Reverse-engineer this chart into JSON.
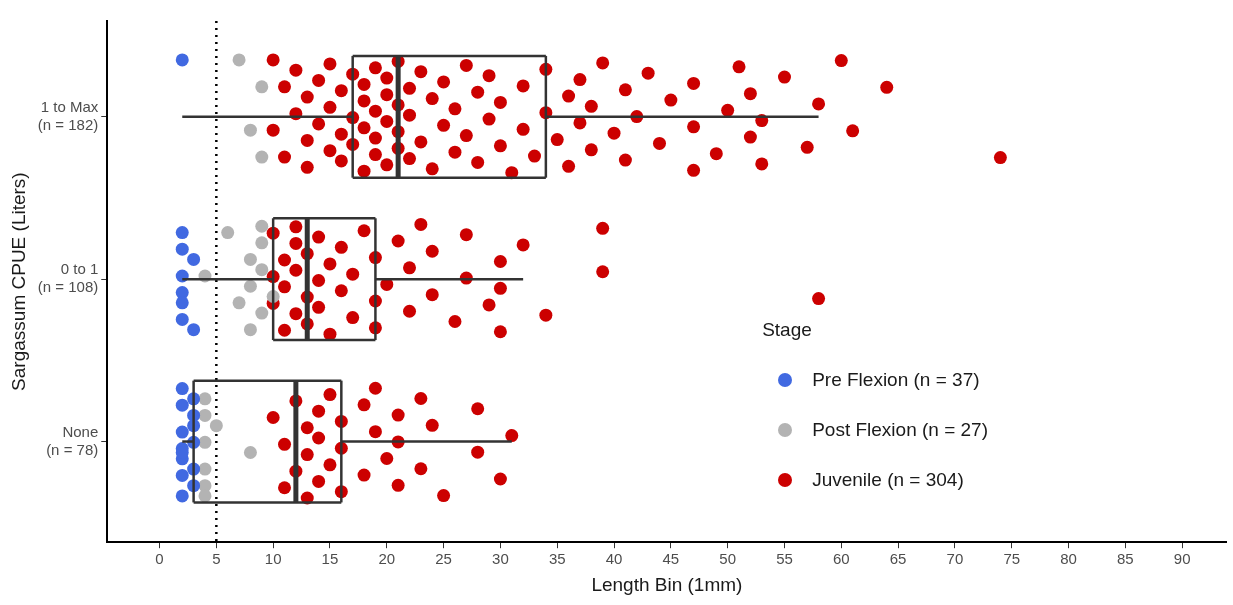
{
  "chart_data": {
    "type": "box",
    "orientation": "horizontal",
    "xlabel": "Length Bin (1mm)",
    "ylabel": "Sargassum CPUE (Liters)",
    "legend_title": "Stage",
    "legend": "bottom right",
    "categories": [
      "1 to Max\n(n = 182)",
      "0 to 1\n(n = 108)",
      "None\n(n = 78)"
    ],
    "xlim": [
      -4.6,
      93.9
    ],
    "xticks": [
      0,
      5,
      10,
      15,
      20,
      25,
      30,
      35,
      40,
      45,
      50,
      55,
      60,
      65,
      70,
      75,
      80,
      85,
      90
    ],
    "boxes": [
      {
        "low": 2,
        "q1": 17,
        "median": 21,
        "q3": 34,
        "high": 58
      },
      {
        "low": 2,
        "q1": 10,
        "median": 13,
        "q3": 19,
        "high": 32
      },
      {
        "low": 2,
        "q1": 3,
        "median": 12,
        "q3": 16,
        "high": 31
      }
    ],
    "ref_lines": [
      {
        "axis": "x",
        "value": 5,
        "line_style": "dotted",
        "color": "#000000"
      }
    ],
    "series": [
      {
        "name": "Pre Flexion (n = 37)",
        "type": "scatter",
        "color": "#4169e1",
        "x": [
          "1 to Max\n(n = 182)",
          "0 to 1\n(n = 108)",
          "0 to 1\n(n = 108)",
          "0 to 1\n(n = 108)",
          "0 to 1\n(n = 108)",
          "0 to 1\n(n = 108)",
          "0 to 1\n(n = 108)",
          "0 to 1\n(n = 108)",
          "0 to 1\n(n = 108)",
          "None\n(n = 78)",
          "None\n(n = 78)",
          "None\n(n = 78)",
          "None\n(n = 78)",
          "None\n(n = 78)",
          "None\n(n = 78)",
          "None\n(n = 78)",
          "None\n(n = 78)",
          "None\n(n = 78)",
          "None\n(n = 78)",
          "None\n(n = 78)",
          "None\n(n = 78)",
          "None\n(n = 78)",
          "None\n(n = 78)"
        ],
        "values": [
          2,
          2,
          2,
          2,
          2,
          2,
          2,
          3,
          3,
          2,
          2,
          2,
          2,
          2,
          2,
          3,
          3,
          3,
          3,
          3,
          3,
          2,
          2
        ]
      },
      {
        "name": "Post Flexion (n = 27)",
        "type": "scatter",
        "color": "#b3b3b3",
        "x": [
          "1 to Max\n(n = 182)",
          "1 to Max\n(n = 182)",
          "1 to Max\n(n = 182)",
          "1 to Max\n(n = 182)",
          "0 to 1\n(n = 108)",
          "0 to 1\n(n = 108)",
          "0 to 1\n(n = 108)",
          "0 to 1\n(n = 108)",
          "0 to 1\n(n = 108)",
          "0 to 1\n(n = 108)",
          "0 to 1\n(n = 108)",
          "0 to 1\n(n = 108)",
          "0 to 1\n(n = 108)",
          "0 to 1\n(n = 108)",
          "0 to 1\n(n = 108)",
          "None\n(n = 78)",
          "None\n(n = 78)",
          "None\n(n = 78)",
          "None\n(n = 78)",
          "None\n(n = 78)",
          "None\n(n = 78)",
          "None\n(n = 78)",
          "None\n(n = 78)"
        ],
        "values": [
          7,
          8,
          9,
          9,
          4,
          6,
          7,
          8,
          8,
          8,
          9,
          9,
          9,
          9,
          10,
          4,
          4,
          4,
          4,
          4,
          5,
          4,
          8
        ]
      },
      {
        "name": "Juvenile (n = 304)",
        "type": "scatter",
        "color": "#cc0000",
        "x": [
          "1 to Max\n(n = 182)",
          "1 to Max\n(n = 182)",
          "1 to Max\n(n = 182)",
          "1 to Max\n(n = 182)",
          "1 to Max\n(n = 182)",
          "1 to Max\n(n = 182)",
          "1 to Max\n(n = 182)",
          "1 to Max\n(n = 182)",
          "1 to Max\n(n = 182)",
          "1 to Max\n(n = 182)",
          "1 to Max\n(n = 182)",
          "1 to Max\n(n = 182)",
          "1 to Max\n(n = 182)",
          "1 to Max\n(n = 182)",
          "1 to Max\n(n = 182)",
          "1 to Max\n(n = 182)",
          "1 to Max\n(n = 182)",
          "1 to Max\n(n = 182)",
          "1 to Max\n(n = 182)",
          "1 to Max\n(n = 182)",
          "1 to Max\n(n = 182)",
          "1 to Max\n(n = 182)",
          "1 to Max\n(n = 182)",
          "1 to Max\n(n = 182)",
          "1 to Max\n(n = 182)",
          "1 to Max\n(n = 182)",
          "1 to Max\n(n = 182)",
          "1 to Max\n(n = 182)",
          "1 to Max\n(n = 182)",
          "1 to Max\n(n = 182)",
          "1 to Max\n(n = 182)",
          "1 to Max\n(n = 182)",
          "1 to Max\n(n = 182)",
          "1 to Max\n(n = 182)",
          "1 to Max\n(n = 182)",
          "1 to Max\n(n = 182)",
          "1 to Max\n(n = 182)",
          "1 to Max\n(n = 182)",
          "1 to Max\n(n = 182)",
          "1 to Max\n(n = 182)",
          "1 to Max\n(n = 182)",
          "1 to Max\n(n = 182)",
          "1 to Max\n(n = 182)",
          "1 to Max\n(n = 182)",
          "1 to Max\n(n = 182)",
          "1 to Max\n(n = 182)",
          "1 to Max\n(n = 182)",
          "1 to Max\n(n = 182)",
          "1 to Max\n(n = 182)",
          "1 to Max\n(n = 182)",
          "1 to Max\n(n = 182)",
          "1 to Max\n(n = 182)",
          "1 to Max\n(n = 182)",
          "1 to Max\n(n = 182)",
          "1 to Max\n(n = 182)",
          "1 to Max\n(n = 182)",
          "1 to Max\n(n = 182)",
          "1 to Max\n(n = 182)",
          "1 to Max\n(n = 182)",
          "1 to Max\n(n = 182)",
          "1 to Max\n(n = 182)",
          "1 to Max\n(n = 182)",
          "1 to Max\n(n = 182)",
          "1 to Max\n(n = 182)",
          "1 to Max\n(n = 182)",
          "1 to Max\n(n = 182)",
          "1 to Max\n(n = 182)",
          "1 to Max\n(n = 182)",
          "1 to Max\n(n = 182)",
          "1 to Max\n(n = 182)",
          "1 to Max\n(n = 182)",
          "1 to Max\n(n = 182)",
          "1 to Max\n(n = 182)",
          "1 to Max\n(n = 182)",
          "1 to Max\n(n = 182)",
          "1 to Max\n(n = 182)",
          "1 to Max\n(n = 182)",
          "1 to Max\n(n = 182)",
          "1 to Max\n(n = 182)",
          "1 to Max\n(n = 182)",
          "1 to Max\n(n = 182)",
          "1 to Max\n(n = 182)",
          "1 to Max\n(n = 182)",
          "1 to Max\n(n = 182)",
          "1 to Max\n(n = 182)",
          "1 to Max\n(n = 182)",
          "1 to Max\n(n = 182)",
          "1 to Max\n(n = 182)",
          "1 to Max\n(n = 182)",
          "1 to Max\n(n = 182)",
          "1 to Max\n(n = 182)",
          "1 to Max\n(n = 182)",
          "1 to Max\n(n = 182)",
          "0 to 1\n(n = 108)",
          "0 to 1\n(n = 108)",
          "0 to 1\n(n = 108)",
          "0 to 1\n(n = 108)",
          "0 to 1\n(n = 108)",
          "0 to 1\n(n = 108)",
          "0 to 1\n(n = 108)",
          "0 to 1\n(n = 108)",
          "0 to 1\n(n = 108)",
          "0 to 1\n(n = 108)",
          "0 to 1\n(n = 108)",
          "0 to 1\n(n = 108)",
          "0 to 1\n(n = 108)",
          "0 to 1\n(n = 108)",
          "0 to 1\n(n = 108)",
          "0 to 1\n(n = 108)",
          "0 to 1\n(n = 108)",
          "0 to 1\n(n = 108)",
          "0 to 1\n(n = 108)",
          "0 to 1\n(n = 108)",
          "0 to 1\n(n = 108)",
          "0 to 1\n(n = 108)",
          "0 to 1\n(n = 108)",
          "0 to 1\n(n = 108)",
          "0 to 1\n(n = 108)",
          "0 to 1\n(n = 108)",
          "0 to 1\n(n = 108)",
          "0 to 1\n(n = 108)",
          "0 to 1\n(n = 108)",
          "0 to 1\n(n = 108)",
          "0 to 1\n(n = 108)",
          "0 to 1\n(n = 108)",
          "0 to 1\n(n = 108)",
          "0 to 1\n(n = 108)",
          "0 to 1\n(n = 108)",
          "0 to 1\n(n = 108)",
          "0 to 1\n(n = 108)",
          "0 to 1\n(n = 108)",
          "0 to 1\n(n = 108)",
          "0 to 1\n(n = 108)",
          "0 to 1\n(n = 108)",
          "0 to 1\n(n = 108)",
          "0 to 1\n(n = 108)",
          "0 to 1\n(n = 108)",
          "0 to 1\n(n = 108)",
          "None\n(n = 78)",
          "None\n(n = 78)",
          "None\n(n = 78)",
          "None\n(n = 78)",
          "None\n(n = 78)",
          "None\n(n = 78)",
          "None\n(n = 78)",
          "None\n(n = 78)",
          "None\n(n = 78)",
          "None\n(n = 78)",
          "None\n(n = 78)",
          "None\n(n = 78)",
          "None\n(n = 78)",
          "None\n(n = 78)",
          "None\n(n = 78)",
          "None\n(n = 78)",
          "None\n(n = 78)",
          "None\n(n = 78)",
          "None\n(n = 78)",
          "None\n(n = 78)",
          "None\n(n = 78)",
          "None\n(n = 78)",
          "None\n(n = 78)",
          "None\n(n = 78)",
          "None\n(n = 78)",
          "None\n(n = 78)",
          "None\n(n = 78)",
          "None\n(n = 78)",
          "None\n(n = 78)",
          "None\n(n = 78)",
          "None\n(n = 78)",
          "None\n(n = 78)"
        ],
        "values": [
          10,
          10,
          11,
          11,
          12,
          12,
          13,
          13,
          13,
          14,
          14,
          15,
          15,
          15,
          16,
          16,
          16,
          17,
          17,
          17,
          18,
          18,
          18,
          18,
          19,
          19,
          19,
          19,
          20,
          20,
          20,
          20,
          21,
          21,
          21,
          21,
          22,
          22,
          22,
          23,
          23,
          24,
          24,
          25,
          25,
          26,
          26,
          27,
          27,
          28,
          28,
          29,
          29,
          30,
          30,
          31,
          32,
          32,
          33,
          34,
          34,
          35,
          36,
          36,
          37,
          37,
          38,
          38,
          39,
          40,
          41,
          41,
          42,
          43,
          44,
          45,
          47,
          47,
          47,
          49,
          50,
          51,
          52,
          52,
          53,
          53,
          55,
          57,
          58,
          60,
          61,
          64,
          74,
          10,
          10,
          10,
          11,
          11,
          11,
          12,
          12,
          12,
          12,
          13,
          13,
          13,
          14,
          14,
          14,
          15,
          15,
          16,
          16,
          17,
          17,
          18,
          19,
          19,
          19,
          20,
          21,
          22,
          22,
          23,
          24,
          24,
          26,
          27,
          27,
          29,
          30,
          30,
          30,
          32,
          34,
          39,
          39,
          58,
          10,
          11,
          11,
          12,
          12,
          13,
          13,
          13,
          14,
          14,
          14,
          15,
          15,
          16,
          16,
          16,
          18,
          18,
          19,
          19,
          20,
          21,
          21,
          21,
          23,
          23,
          24,
          25,
          28,
          28,
          30,
          31
        ]
      }
    ]
  }
}
